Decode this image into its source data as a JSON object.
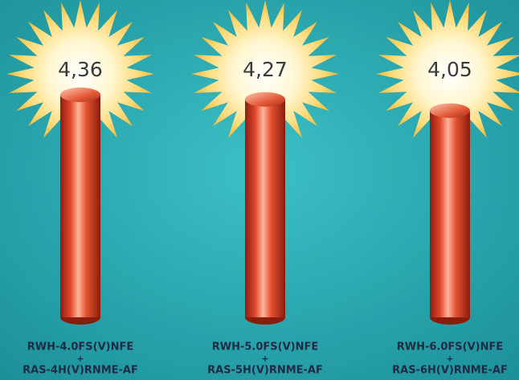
{
  "chart_data": {
    "type": "bar",
    "categories": [
      [
        "RWH-4.0FS(V)NFE",
        "+",
        "RAS-4H(V)RNME-AF"
      ],
      [
        "RWH-5.0FS(V)NFE",
        "+",
        "RAS-5H(V)RNME-AF"
      ],
      [
        "RWH-6.0FS(V)NFE",
        "+",
        "RAS-6H(V)RNME-AF"
      ]
    ],
    "values": [
      4.36,
      4.27,
      4.05
    ],
    "value_labels": [
      "4,36",
      "4,27",
      "4,05"
    ],
    "color": "#e0452a"
  }
}
